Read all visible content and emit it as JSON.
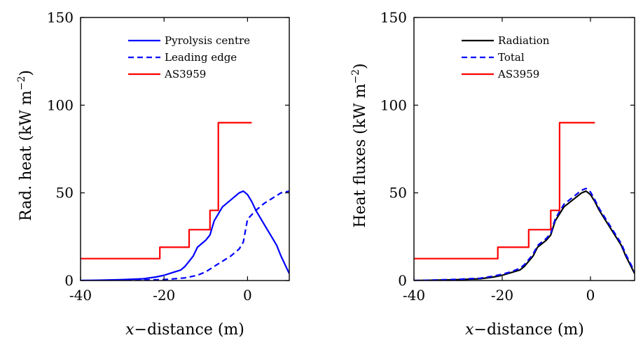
{
  "chart_data": [
    {
      "type": "line",
      "title": "",
      "xlabel": "x−distance (m)",
      "ylabel": "Rad. heat (kW m−2)",
      "ylabel_parts": {
        "text": "Rad. heat (kW m",
        "sup": "−2",
        "close": ")"
      },
      "xlabel_parts": {
        "var": "x",
        "text": "−distance (m)"
      },
      "xlim": [
        -40,
        10
      ],
      "ylim": [
        0,
        150
      ],
      "xticks": [
        -40,
        -20,
        0
      ],
      "xtick_labels": [
        "-40",
        "-20",
        "0"
      ],
      "yticks": [
        0,
        50,
        100,
        150
      ],
      "ytick_labels": [
        "0",
        "50",
        "100",
        "150"
      ],
      "grid": false,
      "legend_position": "top-right",
      "series": [
        {
          "name": "Pyrolysis centre",
          "color": "#0000ff",
          "style": "solid",
          "x": [
            -40,
            -35,
            -30,
            -25,
            -22,
            -20,
            -18,
            -16,
            -15,
            -14,
            -13,
            -12,
            -11,
            -10,
            -9,
            -8,
            -7,
            -6,
            -5,
            -4,
            -3,
            -2,
            -1,
            0,
            1,
            2,
            3,
            4,
            5,
            6,
            7,
            8,
            9,
            10
          ],
          "y": [
            0,
            0.2,
            0.5,
            1,
            2,
            3,
            4.5,
            6,
            8,
            11,
            14,
            19,
            21,
            23,
            26,
            34,
            38,
            42,
            44,
            46,
            48,
            50,
            51,
            49,
            45,
            40,
            36,
            32,
            28,
            24,
            20,
            14,
            9,
            4
          ]
        },
        {
          "name": "Leading edge",
          "color": "#0000ff",
          "style": "dashed",
          "x": [
            -40,
            -30,
            -20,
            -15,
            -12,
            -10,
            -8,
            -6,
            -4,
            -2,
            -1,
            0,
            2,
            4,
            6,
            8,
            10
          ],
          "y": [
            0,
            0.1,
            0.5,
            1.5,
            3,
            5,
            8,
            11,
            14,
            18,
            22,
            35,
            40,
            44,
            47,
            50,
            51
          ]
        },
        {
          "name": "AS3959",
          "color": "#ff0000",
          "style": "solid",
          "x": [
            -40,
            -21,
            -21,
            -14,
            -14,
            -9,
            -9,
            -7,
            -7,
            1
          ],
          "y": [
            12.5,
            12.5,
            19,
            19,
            29,
            29,
            40,
            40,
            90,
            90
          ]
        }
      ]
    },
    {
      "type": "line",
      "title": "",
      "xlabel": "x−distance (m)",
      "ylabel": "Heat fluxes (kW m−2)",
      "ylabel_parts": {
        "text": "Heat fluxes (kW m",
        "sup": "−2",
        "close": ")"
      },
      "xlabel_parts": {
        "var": "x",
        "text": "−distance (m)"
      },
      "xlim": [
        -40,
        10
      ],
      "ylim": [
        0,
        150
      ],
      "xticks": [
        -40,
        -20,
        0
      ],
      "xtick_labels": [
        "-40",
        "-20",
        "0"
      ],
      "yticks": [
        0,
        50,
        100,
        150
      ],
      "ytick_labels": [
        "0",
        "50",
        "100",
        "150"
      ],
      "grid": false,
      "legend_position": "top-right",
      "series": [
        {
          "name": "Radiation",
          "color": "#000000",
          "style": "solid",
          "x": [
            -40,
            -35,
            -30,
            -25,
            -22,
            -20,
            -18,
            -16,
            -15,
            -14,
            -13,
            -12,
            -11,
            -10,
            -9,
            -8,
            -7,
            -6,
            -5,
            -4,
            -3,
            -2,
            -1,
            0,
            1,
            2,
            3,
            4,
            5,
            6,
            7,
            8,
            9,
            10
          ],
          "y": [
            0,
            0.2,
            0.5,
            1,
            2,
            3,
            4.5,
            6,
            8,
            11,
            14,
            19,
            21,
            23,
            26,
            34,
            38,
            42,
            44,
            46,
            48,
            50,
            51,
            49,
            45,
            40,
            36,
            32,
            28,
            24,
            20,
            14,
            9,
            4
          ]
        },
        {
          "name": "Total",
          "color": "#0000ff",
          "style": "dashed",
          "x": [
            -40,
            -35,
            -30,
            -25,
            -22,
            -20,
            -18,
            -16,
            -15,
            -14,
            -13,
            -12,
            -11,
            -10,
            -9,
            -8,
            -7,
            -6,
            -5,
            -4,
            -3,
            -2,
            -1,
            0,
            1,
            2,
            3,
            4,
            5,
            6,
            7,
            8,
            9,
            10
          ],
          "y": [
            0,
            0.3,
            0.7,
            1.3,
            2.5,
            3.6,
            5,
            7,
            9,
            12,
            15,
            20,
            22,
            24,
            27,
            35,
            39.5,
            43.5,
            45.5,
            47.5,
            49.5,
            51.5,
            52.5,
            50.5,
            46,
            41,
            37,
            33,
            29,
            25,
            21,
            15,
            10,
            5
          ]
        },
        {
          "name": "AS3959",
          "color": "#ff0000",
          "style": "solid",
          "x": [
            -40,
            -21,
            -21,
            -14,
            -14,
            -9,
            -9,
            -7,
            -7,
            1
          ],
          "y": [
            12.5,
            12.5,
            19,
            19,
            29,
            29,
            40,
            40,
            90,
            90
          ]
        }
      ]
    }
  ]
}
